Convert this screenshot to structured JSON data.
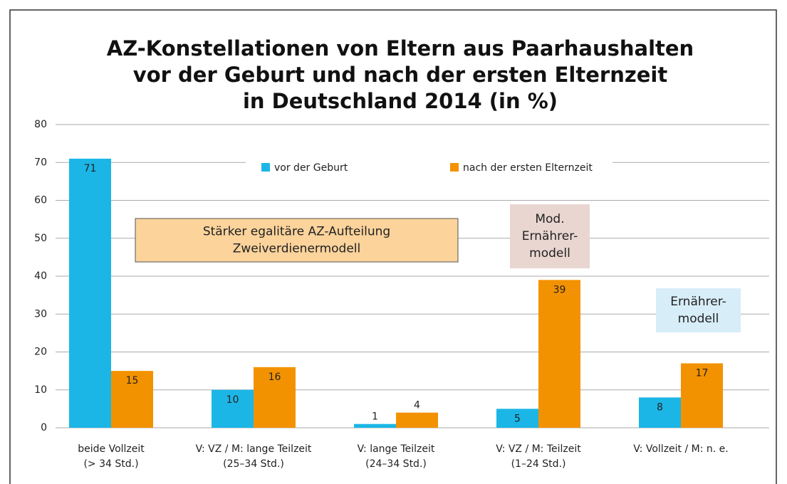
{
  "chart_data": {
    "type": "bar",
    "title": [
      "AZ-Konstellationen von Eltern aus Paarhaushalten",
      "vor der Geburt und nach der ersten Elternzeit",
      "in Deutschland 2014 (in %)"
    ],
    "categories": [
      [
        "beide Vollzeit",
        "(> 34 Std.)"
      ],
      [
        "V: VZ / M: lange Teilzeit",
        "(25–34 Std.)"
      ],
      [
        "V: lange Teilzeit",
        "(24–34 Std.)"
      ],
      [
        "V: VZ / M: Teilzeit",
        "(1–24 Std.)"
      ],
      [
        "V: Vollzeit / M: n. e."
      ]
    ],
    "series": [
      {
        "name": "vor der Geburt",
        "color": "#1bb6e6",
        "values": [
          71,
          10,
          1,
          5,
          8
        ]
      },
      {
        "name": "nach der ersten Elternzeit",
        "color": "#f39200",
        "values": [
          15,
          16,
          4,
          39,
          17
        ]
      }
    ],
    "ylim": [
      0,
      80
    ],
    "yticks": [
      0,
      10,
      20,
      30,
      40,
      50,
      60,
      70,
      80
    ],
    "grid": true,
    "annotations": [
      {
        "lines": [
          "Stärker egalitäre AZ-Aufteilung",
          "Zweiverdienermodell"
        ],
        "color": "#fbd39b"
      },
      {
        "lines": [
          "Mod.",
          "Ernährer-",
          "modell"
        ],
        "color": "#e9d6d0"
      },
      {
        "lines": [
          "Ernährer-",
          "modell"
        ],
        "color": "#d7edf8"
      }
    ]
  }
}
